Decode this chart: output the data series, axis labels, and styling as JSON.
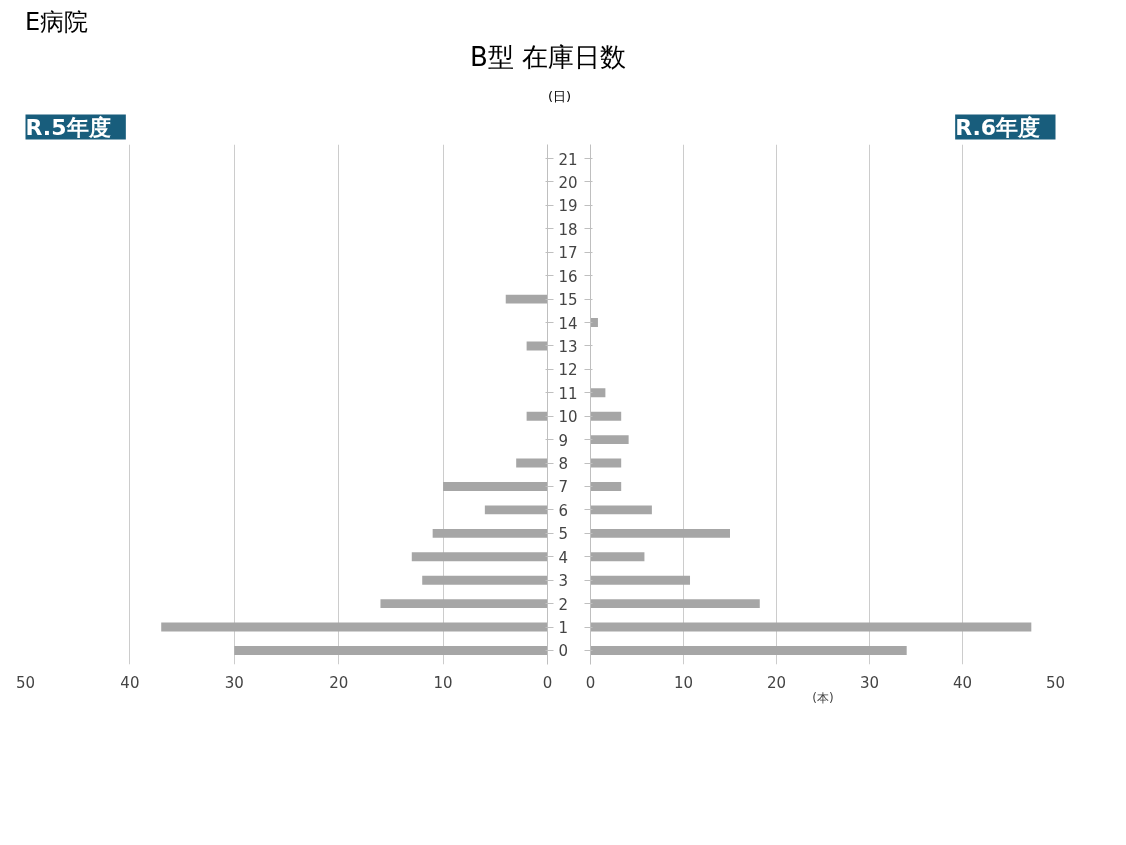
{
  "chart_data": [
    {
      "type": "bar",
      "orientation": "horizontal",
      "title": "B型 在庫日数",
      "annotations": [
        "E病院"
      ],
      "subtitle": "R.5年度",
      "ylabel": "(日)",
      "categories": [
        "21",
        "20",
        "19",
        "18",
        "17",
        "16",
        "15",
        "14",
        "13",
        "12",
        "11",
        "10",
        "9",
        "8",
        "7",
        "6",
        "5",
        "4",
        "3",
        "2",
        "1",
        "0"
      ],
      "series": [
        {
          "color": "#a6a6a6",
          "values": [
            null,
            null,
            null,
            null,
            null,
            null,
            4,
            null,
            2,
            null,
            null,
            2,
            null,
            3,
            10,
            6,
            11,
            13,
            12,
            16,
            37,
            30
          ]
        }
      ],
      "xlim": [
        50,
        0
      ],
      "xticks": [
        50,
        40,
        30,
        20,
        10,
        0
      ],
      "grid": "x"
    },
    {
      "type": "bar",
      "orientation": "horizontal",
      "subtitle": "R.6年度",
      "xlabel": "(本)",
      "tick_labels": "x",
      "categories": [
        "21",
        "20",
        "19",
        "18",
        "17",
        "16",
        "15",
        "14",
        "13",
        "12",
        "11",
        "10",
        "9",
        "8",
        "7",
        "6",
        "5",
        "4",
        "3",
        "2",
        "1",
        "0"
      ],
      "series": [
        {
          "color": "#a6a6a6",
          "values": [
            null,
            null,
            null,
            null,
            null,
            null,
            null,
            0.8,
            null,
            null,
            1.6,
            3.3,
            4.1,
            3.3,
            3.3,
            6.6,
            15,
            5.8,
            10.7,
            18.2,
            47.4,
            34
          ]
        }
      ],
      "xlim": [
        0,
        50
      ],
      "xticks": [
        0,
        10,
        20,
        30,
        40,
        50
      ],
      "grid": "x"
    }
  ]
}
